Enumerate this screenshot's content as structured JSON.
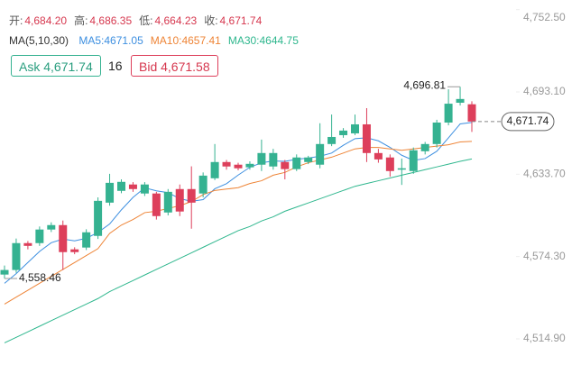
{
  "header": {
    "ohlc": [
      {
        "label": "开:",
        "value": "4,684.20"
      },
      {
        "label": "高:",
        "value": "4,686.35"
      },
      {
        "label": "低:",
        "value": "4,664.23"
      },
      {
        "label": "收:",
        "value": "4,671.74"
      }
    ],
    "ma_title": "MA(5,10,30)",
    "ma_values": [
      {
        "text": "MA5:4671.05",
        "color": "#3d8fe0"
      },
      {
        "text": "MA10:4657.41",
        "color": "#ee8436"
      },
      {
        "text": "MA30:4644.75",
        "color": "#2fb78e"
      }
    ],
    "ask": "Ask 4,671.74",
    "spread": "16",
    "bid": "Bid 4,671.58"
  },
  "chart_data": {
    "type": "candlestick",
    "up_color": "#35b291",
    "down_color": "#dd3f5b",
    "ylim": [
      4514.9,
      4752.5
    ],
    "yticks": [
      {
        "value": 4752.5,
        "label": "4,752.50"
      },
      {
        "value": 4693.1,
        "label": "4,693.10"
      },
      {
        "value": 4633.7,
        "label": "4,633.70"
      },
      {
        "value": 4574.3,
        "label": "4,574.30"
      },
      {
        "value": 4514.9,
        "label": "4,514.90"
      }
    ],
    "open": [
      4561.3,
      4564.6,
      4584.0,
      4584.0,
      4593.8,
      4597.0,
      4579.5,
      4580.8,
      4589.2,
      4613.2,
      4621.7,
      4626.3,
      4619.8,
      4619.8,
      4606.1,
      4623.0,
      4623.0,
      4619.8,
      4630.8,
      4642.5,
      4640.6,
      4638.7,
      4640.6,
      4639.3,
      4642.5,
      4637.4,
      4642.5,
      4640.6,
      4655.5,
      4661.9,
      4663.2,
      4669.7,
      4649.0,
      4645.8,
      4637.0,
      4636.0,
      4650.3,
      4655.5,
      4671.0,
      4685.3,
      4684.2
    ],
    "high": [
      4567.8,
      4587.3,
      4585.5,
      4596.0,
      4599.0,
      4600.3,
      4581.0,
      4594.0,
      4617.0,
      4634.0,
      4630.0,
      4628.0,
      4628.0,
      4621.0,
      4623.0,
      4626.3,
      4639.4,
      4635.0,
      4655.5,
      4644.0,
      4642.0,
      4643.0,
      4658.7,
      4652.0,
      4644.0,
      4648.0,
      4647.0,
      4670.5,
      4676.8,
      4667.0,
      4676.8,
      4681.4,
      4652.0,
      4648.0,
      4645.0,
      4653.0,
      4657.0,
      4673.0,
      4695.0,
      4696.81,
      4686.35
    ],
    "low": [
      4558.46,
      4562.6,
      4579.5,
      4582.0,
      4592.0,
      4564.6,
      4576.0,
      4579.0,
      4587.0,
      4611.0,
      4620.0,
      4621.0,
      4618.0,
      4601.0,
      4604.0,
      4603.5,
      4594.4,
      4617.0,
      4629.5,
      4637.0,
      4636.5,
      4637.0,
      4636.0,
      4637.0,
      4630.0,
      4636.0,
      4641.0,
      4638.0,
      4654.0,
      4660.0,
      4662.0,
      4642.5,
      4642.0,
      4632.0,
      4626.0,
      4634.0,
      4648.0,
      4653.0,
      4669.0,
      4683.3,
      4664.23
    ],
    "close": [
      4564.6,
      4584.0,
      4582.0,
      4593.8,
      4597.0,
      4577.5,
      4577.5,
      4591.8,
      4614.5,
      4627.5,
      4628.2,
      4623.0,
      4626.3,
      4603.5,
      4621.0,
      4606.8,
      4613.2,
      4632.7,
      4642.5,
      4639.3,
      4638.0,
      4641.2,
      4649.0,
      4649.0,
      4637.4,
      4645.8,
      4645.8,
      4655.5,
      4660.6,
      4665.2,
      4669.7,
      4649.0,
      4644.4,
      4636.0,
      4638.0,
      4651.0,
      4655.5,
      4671.0,
      4684.6,
      4688.0,
      4671.74
    ],
    "series": [
      {
        "name": "MA5",
        "color": "#3d8fe0",
        "values": [
          4555,
          4562,
          4570,
          4578,
          4584.3,
          4586.9,
          4585.6,
          4587.5,
          4591.7,
          4597.8,
          4608,
          4617,
          4623.9,
          4621.7,
          4620.4,
          4616.1,
          4614.2,
          4615.4,
          4623.2,
          4626.9,
          4633.1,
          4638.7,
          4642.0,
          4643.3,
          4643.0,
          4644.5,
          4645.4,
          4646.7,
          4649.0,
          4654.6,
          4659.4,
          4660.0,
          4657.8,
          4653.1,
          4647.4,
          4643.7,
          4645.0,
          4650.3,
          4660.0,
          4670.0,
          4671.05
        ]
      },
      {
        "name": "MA10",
        "color": "#ee8436",
        "values": [
          4540,
          4545,
          4550,
          4555,
          4560,
          4565,
          4570,
          4575,
          4580,
          4591,
          4597,
          4601,
          4606,
          4607,
          4609,
          4611,
          4614,
          4619,
          4622,
          4623,
          4624,
          4627,
          4629,
          4633,
          4635,
          4639,
          4642,
          4644,
          4646,
          4649,
          4652,
          4653,
          4653,
          4652,
          4651,
          4652,
          4653,
          4654,
          4655,
          4657,
          4657.41
        ]
      },
      {
        "name": "MA30",
        "color": "#2fb78e",
        "values": [
          4512,
          4516,
          4520,
          4524,
          4528,
          4532,
          4536,
          4540,
          4544,
          4549,
          4553,
          4557,
          4561,
          4565,
          4569,
          4573,
          4577,
          4581,
          4585,
          4589,
          4593,
          4596,
          4600,
          4603,
          4607,
          4610,
          4613,
          4616,
          4619,
          4622,
          4625,
          4627,
          4629,
          4631,
          4633,
          4635,
          4637,
          4639,
          4641,
          4643,
          4644.75
        ]
      }
    ],
    "annotations": {
      "max": "4,696.81",
      "min": "4,558.46",
      "last": "4,671.74"
    }
  }
}
